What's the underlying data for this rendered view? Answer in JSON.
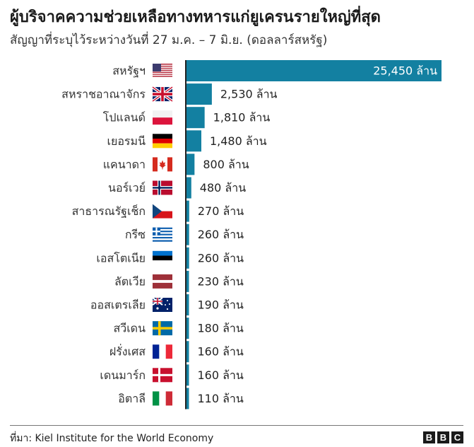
{
  "title": "ผู้บริจาคความช่วยเหลือทางทหารแก่ยูเครนรายใหญ่ที่สุด",
  "subtitle": "สัญญาที่ระบุไว้ระหว่างวันที่ 27 ม.ค. – 7 มิ.ย. (ดอลลาร์สหรัฐ)",
  "source": "ที่มา: Kiel Institute for the World Economy",
  "logo": [
    "B",
    "B",
    "C"
  ],
  "colors": {
    "bar": "#1380a1",
    "axis": "#222222"
  },
  "chart_data": {
    "type": "bar",
    "orientation": "horizontal",
    "value_suffix": " ล้าน",
    "categories": [
      "สหรัฐฯ",
      "สหราชอาณาจักร",
      "โปแลนด์",
      "เยอรมนี",
      "แคนาดา",
      "นอร์เวย์",
      "สาธารณรัฐเช็ก",
      "กรีซ",
      "เอสโตเนีย",
      "ลัตเวีย",
      "ออสเตรเลีย",
      "สวีเดน",
      "ฝรั่งเศส",
      "เดนมาร์ก",
      "อิตาลี"
    ],
    "values": [
      25450,
      2530,
      1810,
      1480,
      800,
      480,
      270,
      260,
      260,
      230,
      190,
      180,
      160,
      160,
      110
    ],
    "value_labels": [
      "25,450 ล้าน",
      "2,530 ล้าน",
      "1,810 ล้าน",
      "1,480 ล้าน",
      "800 ล้าน",
      "480 ล้าน",
      "270 ล้าน",
      "260 ล้าน",
      "260 ล้าน",
      "230 ล้าน",
      "190 ล้าน",
      "180 ล้าน",
      "160 ล้าน",
      "160 ล้าน",
      "110 ล้าน"
    ],
    "flags": [
      "us-flag-icon",
      "uk-flag-icon",
      "poland-flag-icon",
      "germany-flag-icon",
      "canada-flag-icon",
      "norway-flag-icon",
      "czech-flag-icon",
      "greece-flag-icon",
      "estonia-flag-icon",
      "latvia-flag-icon",
      "australia-flag-icon",
      "sweden-flag-icon",
      "france-flag-icon",
      "denmark-flag-icon",
      "italy-flag-icon"
    ],
    "xlim": [
      0,
      25450
    ],
    "grid": false,
    "legend": "none"
  }
}
